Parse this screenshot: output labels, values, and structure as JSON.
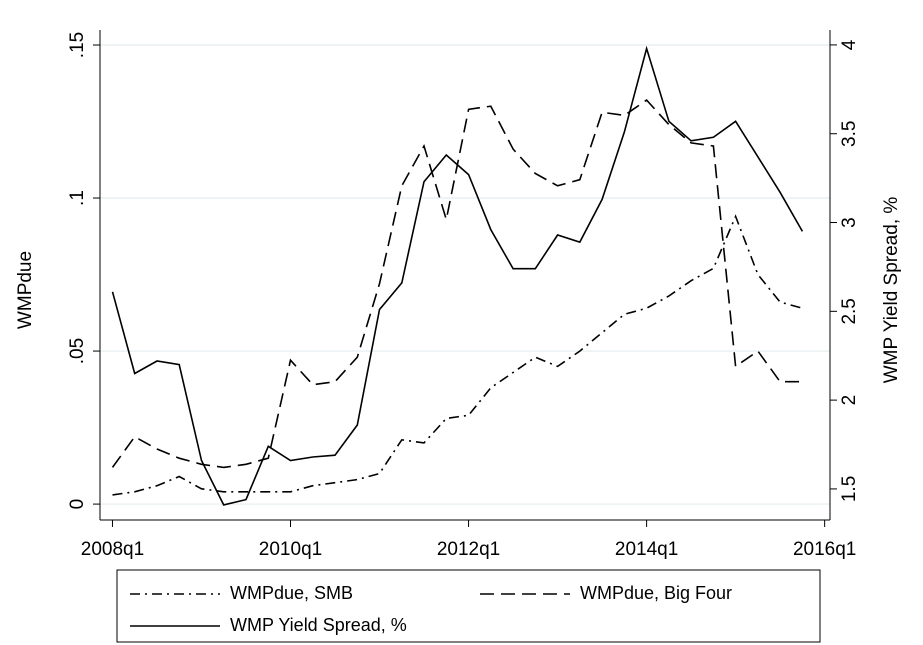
{
  "chart_data": {
    "type": "line",
    "x": [
      2008,
      2008.25,
      2008.5,
      2008.75,
      2009,
      2009.25,
      2009.5,
      2009.75,
      2010,
      2010.25,
      2010.5,
      2010.75,
      2011,
      2011.25,
      2011.5,
      2011.75,
      2012,
      2012.25,
      2012.5,
      2012.75,
      2013,
      2013.25,
      2013.5,
      2013.75,
      2014,
      2014.25,
      2014.5,
      2014.75,
      2015,
      2015.25,
      2015.5,
      2015.75
    ],
    "xlim": [
      2007.86,
      2016.06
    ],
    "xticks": [
      {
        "value": 2008,
        "label": "2008q1"
      },
      {
        "value": 2010,
        "label": "2010q1"
      },
      {
        "value": 2012,
        "label": "2012q1"
      },
      {
        "value": 2014,
        "label": "2014q1"
      },
      {
        "value": 2016,
        "label": "2016q1"
      }
    ],
    "ylabel": "WMPdue",
    "ylim": [
      -0.0052,
      0.1549
    ],
    "yticks": [
      0,
      {
        "value": 0.05,
        "label": ".05"
      },
      {
        "value": 0.1,
        "label": ".1"
      },
      {
        "value": 0.15,
        "label": ".15"
      }
    ],
    "y2label": "WMP Yield Spread, %",
    "y2lim": [
      1.325,
      4.084
    ],
    "y2ticks": [
      1.5,
      2,
      2.5,
      3,
      3.5,
      4
    ],
    "grid": true,
    "legend": "bottom",
    "series": [
      {
        "name": "WMPdue, SMB",
        "color": "#000000",
        "dash": "dashdot",
        "values": [
          0.003,
          0.004,
          0.006,
          0.009,
          0.005,
          0.004,
          0.004,
          0.004,
          0.004,
          0.006,
          0.007,
          0.008,
          0.01,
          0.021,
          0.02,
          0.028,
          0.029,
          0.038,
          0.043,
          0.048,
          0.045,
          0.05,
          0.056,
          0.062,
          0.064,
          0.068,
          0.073,
          0.077,
          0.094,
          0.075,
          0.066,
          0.064
        ]
      },
      {
        "name": "WMPdue, Big Four",
        "color": "#000000",
        "dash": "dashed",
        "values": [
          0.012,
          0.022,
          0.018,
          0.015,
          0.013,
          0.012,
          0.013,
          0.015,
          0.047,
          0.039,
          0.04,
          0.048,
          0.072,
          0.104,
          0.117,
          0.093,
          0.129,
          0.13,
          0.116,
          0.108,
          0.104,
          0.106,
          0.128,
          0.127,
          0.132,
          0.124,
          0.118,
          0.117,
          0.045,
          0.05,
          0.04,
          0.04
        ]
      },
      {
        "name": "WMP Yield Spread, %",
        "color": "#000000",
        "dash": "solid",
        "axis": "y2",
        "values": [
          2.61,
          2.15,
          2.22,
          2.2,
          1.66,
          1.41,
          1.44,
          1.74,
          1.66,
          1.68,
          1.69,
          1.86,
          2.51,
          2.66,
          3.23,
          3.38,
          3.27,
          2.96,
          2.74,
          2.74,
          2.93,
          2.89,
          3.13,
          3.51,
          3.98,
          3.57,
          3.46,
          3.48,
          3.57,
          3.37,
          3.17,
          2.95
        ]
      }
    ]
  }
}
